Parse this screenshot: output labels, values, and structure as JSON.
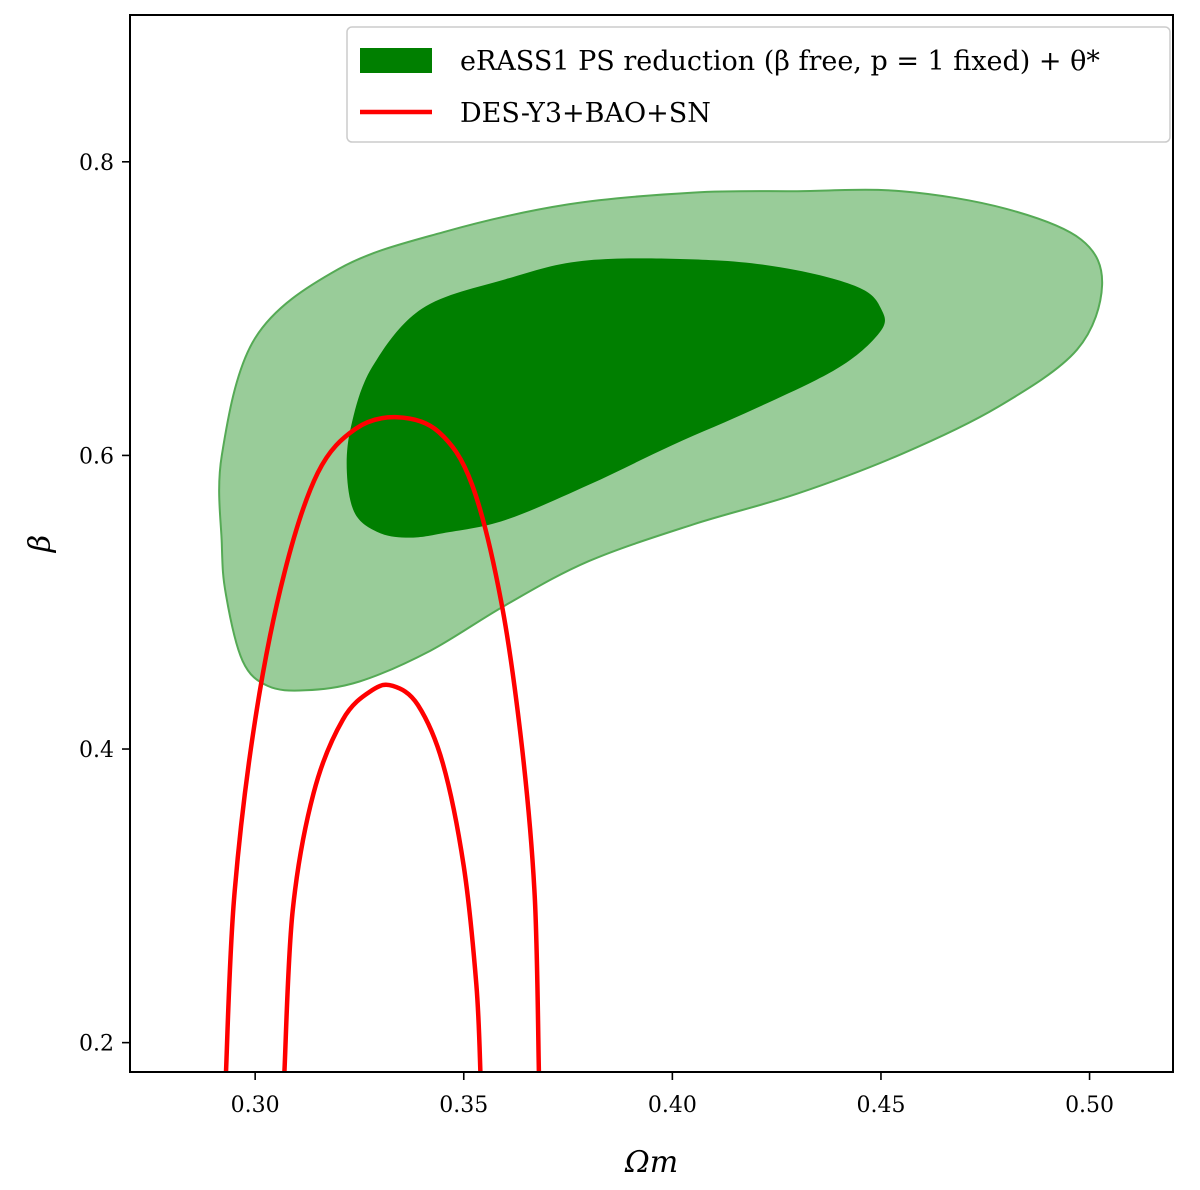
{
  "chart_data": {
    "type": "contour",
    "xlabel": "Ωm",
    "ylabel": "β",
    "xlim": [
      0.27,
      0.52
    ],
    "ylim": [
      0.18,
      0.9
    ],
    "xticks": [
      "0.30",
      "0.35",
      "0.40",
      "0.45",
      "0.50"
    ],
    "yticks": [
      "0.2",
      "0.4",
      "0.6",
      "0.8"
    ],
    "xtick_values": [
      0.3,
      0.35,
      0.4,
      0.45,
      0.5
    ],
    "ytick_values": [
      0.2,
      0.4,
      0.6,
      0.8
    ],
    "grid": false,
    "legend_position": "top-right",
    "series": [
      {
        "name": "eRASS1 PS reduction (β free, p = 1 fixed) + θ*",
        "kind": "filled-contour",
        "color": "#007f00",
        "levels": [
          {
            "level": "95%",
            "fill": "#99cc99",
            "points": [
              [
                0.292,
                0.54
              ],
              [
                0.293,
                0.505
              ],
              [
                0.297,
                0.46
              ],
              [
                0.303,
                0.443
              ],
              [
                0.312,
                0.44
              ],
              [
                0.325,
                0.446
              ],
              [
                0.342,
                0.467
              ],
              [
                0.36,
                0.498
              ],
              [
                0.38,
                0.528
              ],
              [
                0.405,
                0.553
              ],
              [
                0.43,
                0.574
              ],
              [
                0.455,
                0.601
              ],
              [
                0.478,
                0.633
              ],
              [
                0.497,
                0.672
              ],
              [
                0.503,
                0.716
              ],
              [
                0.498,
                0.747
              ],
              [
                0.48,
                0.768
              ],
              [
                0.455,
                0.78
              ],
              [
                0.43,
                0.78
              ],
              [
                0.405,
                0.779
              ],
              [
                0.375,
                0.771
              ],
              [
                0.345,
                0.752
              ],
              [
                0.32,
                0.727
              ],
              [
                0.3,
                0.68
              ],
              [
                0.292,
                0.6
              ],
              [
                0.292,
                0.54
              ]
            ]
          },
          {
            "level": "68%",
            "fill": "#007f00",
            "points": [
              [
                0.322,
                0.588
              ],
              [
                0.324,
                0.56
              ],
              [
                0.33,
                0.547
              ],
              [
                0.337,
                0.544
              ],
              [
                0.345,
                0.547
              ],
              [
                0.36,
                0.556
              ],
              [
                0.38,
                0.58
              ],
              [
                0.4,
                0.607
              ],
              [
                0.42,
                0.632
              ],
              [
                0.44,
                0.66
              ],
              [
                0.45,
                0.685
              ],
              [
                0.45,
                0.7
              ],
              [
                0.445,
                0.714
              ],
              [
                0.43,
                0.726
              ],
              [
                0.41,
                0.733
              ],
              [
                0.38,
                0.733
              ],
              [
                0.36,
                0.72
              ],
              [
                0.34,
                0.7
              ],
              [
                0.328,
                0.66
              ],
              [
                0.323,
                0.62
              ],
              [
                0.322,
                0.588
              ]
            ]
          }
        ]
      },
      {
        "name": "DES-Y3+BAO+SN",
        "kind": "contour-line",
        "color": "#ff0000",
        "levels": [
          {
            "level": "95%",
            "points": [
              [
                0.293,
                0.18
              ],
              [
                0.295,
                0.3
              ],
              [
                0.3,
                0.42
              ],
              [
                0.307,
                0.52
              ],
              [
                0.315,
                0.588
              ],
              [
                0.324,
                0.618
              ],
              [
                0.334,
                0.626
              ],
              [
                0.344,
                0.616
              ],
              [
                0.352,
                0.58
              ],
              [
                0.359,
                0.5
              ],
              [
                0.364,
                0.4
              ],
              [
                0.367,
                0.3
              ],
              [
                0.368,
                0.18
              ]
            ]
          },
          {
            "level": "68%",
            "points": [
              [
                0.307,
                0.18
              ],
              [
                0.309,
                0.29
              ],
              [
                0.314,
                0.37
              ],
              [
                0.321,
                0.42
              ],
              [
                0.328,
                0.44
              ],
              [
                0.333,
                0.443
              ],
              [
                0.339,
                0.43
              ],
              [
                0.345,
                0.39
              ],
              [
                0.35,
                0.32
              ],
              [
                0.353,
                0.24
              ],
              [
                0.354,
                0.18
              ]
            ]
          }
        ]
      }
    ]
  }
}
